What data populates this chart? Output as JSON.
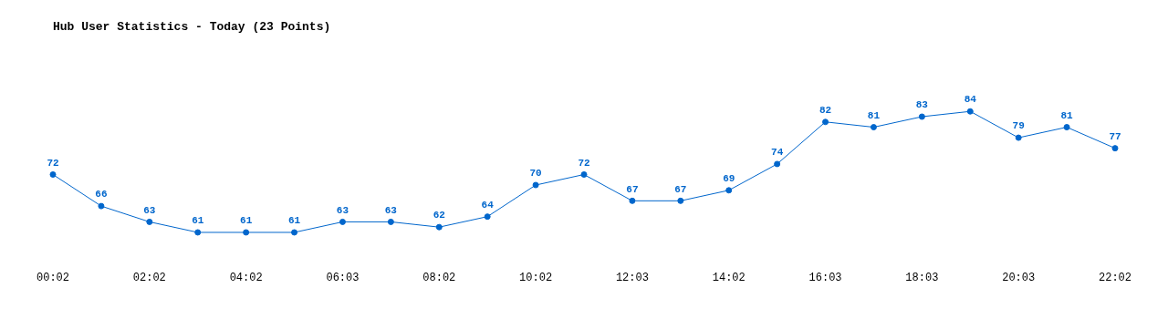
{
  "chart_data": {
    "type": "line",
    "title": "Hub User Statistics - Today (23 Points)",
    "categories": [
      "00:02",
      null,
      "02:02",
      null,
      "04:02",
      null,
      "06:03",
      null,
      "08:02",
      null,
      "10:02",
      null,
      "12:03",
      null,
      "14:02",
      null,
      "16:03",
      null,
      "18:03",
      null,
      "20:03",
      null,
      "22:02"
    ],
    "series": [
      {
        "color": "#0066cc",
        "values": [
          72,
          66,
          63,
          61,
          61,
          61,
          63,
          63,
          62,
          64,
          70,
          72,
          67,
          67,
          69,
          74,
          82,
          81,
          83,
          84,
          79,
          81,
          77
        ]
      }
    ],
    "data_labels": true,
    "grid": false,
    "legend": false,
    "tick_labels": "x",
    "marker": "circle",
    "line_style": "solid"
  }
}
